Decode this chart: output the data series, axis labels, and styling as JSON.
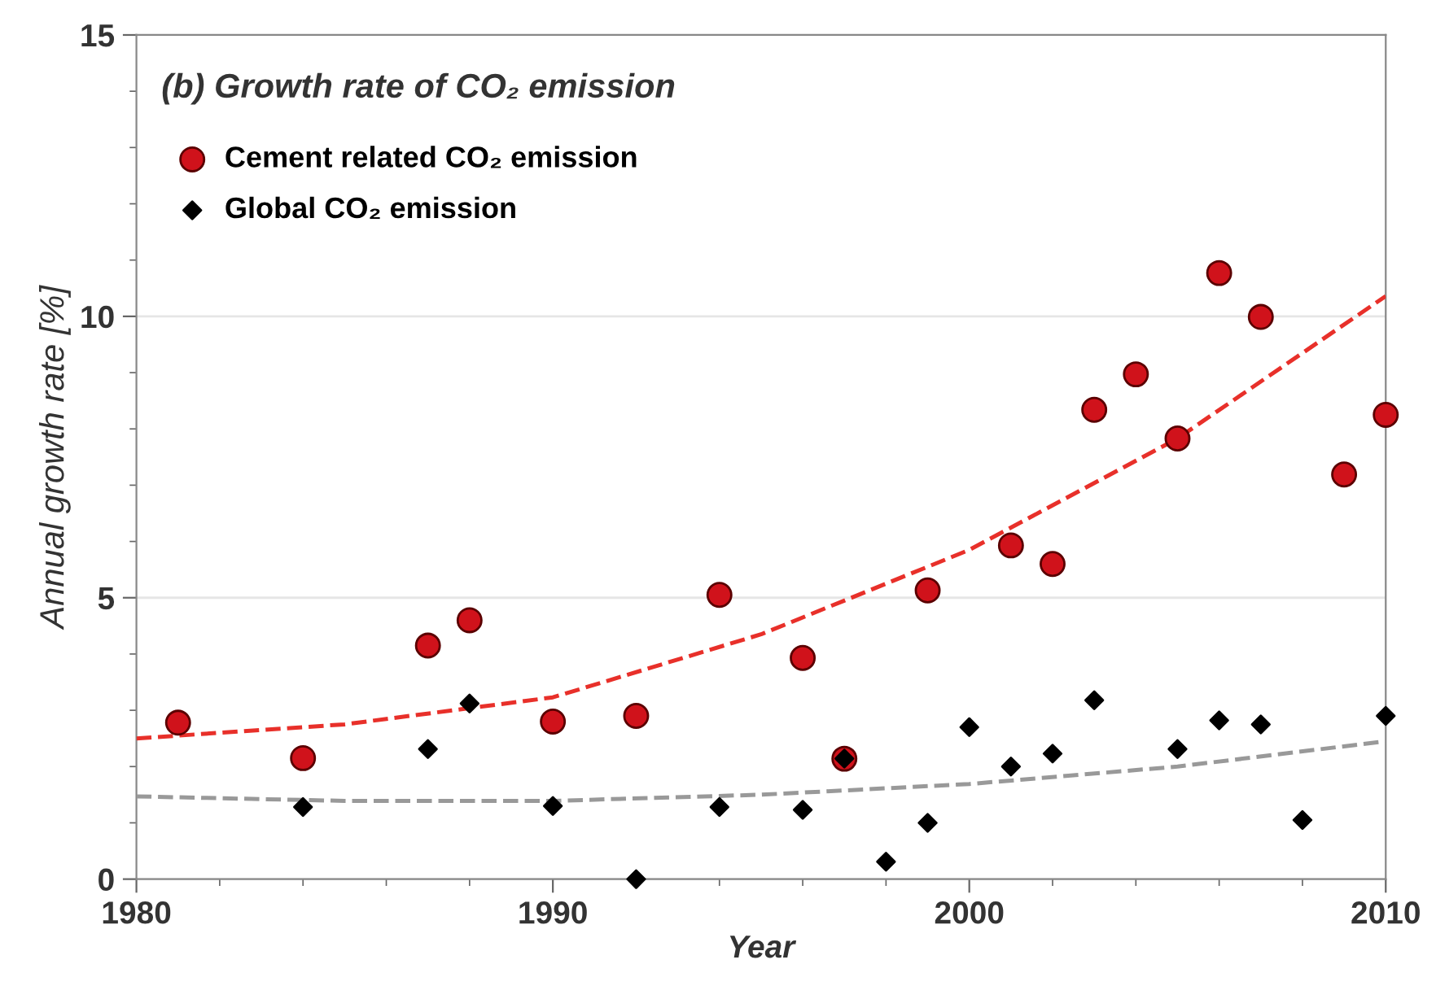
{
  "chart_data": {
    "type": "scatter",
    "title": "(b) Growth rate of CO₂ emission",
    "xlabel": "Year",
    "ylabel": "Annual growth rate [%]",
    "xlim": [
      1980,
      2010
    ],
    "xticks": [
      1980,
      1990,
      2000,
      2010
    ],
    "ylim": [
      0,
      15
    ],
    "yticks": [
      0,
      5,
      10,
      15
    ],
    "grid": "y",
    "legend": "top left",
    "series": [
      {
        "name": "Cement related CO₂ emission",
        "marker": "circle",
        "color": "#d0121b",
        "x": [
          1981,
          1984,
          1987,
          1988,
          1990,
          1992,
          1994,
          1996,
          1997,
          1999,
          2001,
          2002,
          2003,
          2004,
          2005,
          2006,
          2007,
          2009,
          2010
        ],
        "values": [
          2.78,
          2.15,
          4.15,
          4.6,
          2.8,
          2.9,
          5.05,
          3.93,
          2.14,
          5.13,
          5.93,
          5.6,
          8.34,
          8.97,
          7.83,
          10.77,
          9.99,
          7.19,
          8.25
        ]
      },
      {
        "name": "Global CO₂ emission",
        "marker": "diamond",
        "color": "#000000",
        "x": [
          1984,
          1987,
          1988,
          1990,
          1992,
          1994,
          1996,
          1997,
          1998,
          1999,
          2000,
          2001,
          2002,
          2003,
          2005,
          2006,
          2007,
          2008,
          2010
        ],
        "values": [
          1.28,
          2.31,
          3.12,
          1.3,
          0,
          1.28,
          1.23,
          2.14,
          0.31,
          1.0,
          2.7,
          2.0,
          2.23,
          3.18,
          2.31,
          2.82,
          2.75,
          1.05,
          2.9
        ]
      },
      {
        "type": "line",
        "line_style": "dashed",
        "color": "#e8302a",
        "x": [
          1980,
          1985,
          1990,
          1995,
          2000,
          2005,
          2010
        ],
        "values": [
          2.5,
          2.75,
          3.23,
          4.35,
          5.85,
          7.83,
          10.36
        ]
      },
      {
        "type": "line",
        "line_style": "dashed",
        "color": "#999999",
        "x": [
          1980,
          1985,
          1990,
          1995,
          2000,
          2005,
          2010
        ],
        "values": [
          1.47,
          1.39,
          1.39,
          1.5,
          1.69,
          2.0,
          2.45
        ]
      }
    ]
  }
}
